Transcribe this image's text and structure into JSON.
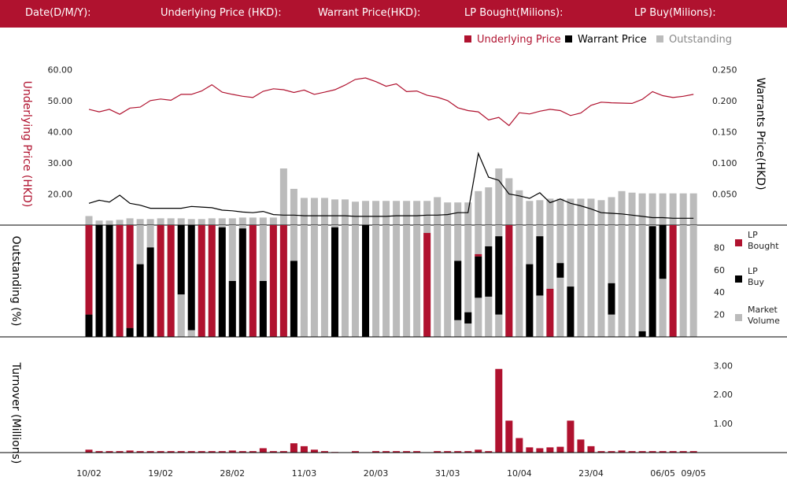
{
  "header": {
    "date_label": "Date(D/M/Y):",
    "underlying_label": "Underlying Price (HKD):",
    "warrant_label": "Warrant  Price(HKD):",
    "lp_bought_label": "LP Bought(Milions):",
    "lp_buy_label": "LP Buy(Milions):"
  },
  "colors": {
    "brand": "#b0122f",
    "black": "#000000",
    "gray": "#bbbbbb"
  },
  "chart_data": [
    {
      "type": "line",
      "title": "",
      "legend": {
        "position": "top-right",
        "items": [
          {
            "label": "Underlying Price",
            "color": "#b0122f",
            "marker": "square"
          },
          {
            "label": "Warrant  Price",
            "color": "#000000",
            "marker": "square"
          },
          {
            "label": "Outstanding",
            "color": "#bbbbbb",
            "marker": "square"
          }
        ]
      },
      "ylabel_left": "Underlying Price (HKD)",
      "ylabel_right": "Warrants  Price(HKD)",
      "yticks_left": [
        "20.00",
        "30.00",
        "40.00",
        "50.00",
        "60.00"
      ],
      "yticks_right": [
        "0.050",
        "0.100",
        "0.150",
        "0.200",
        "0.250"
      ],
      "ylim_left": [
        10,
        62.6
      ],
      "ylim_right": [
        0,
        0.263
      ],
      "x_tick_labels": [
        "10/02",
        "19/02",
        "28/02",
        "11/03",
        "20/03",
        "31/03",
        "10/04",
        "23/04",
        "06/05",
        "09/05"
      ],
      "x_tick_index": [
        0,
        7,
        14,
        21,
        28,
        35,
        42,
        49,
        56,
        59
      ],
      "series": [
        {
          "name": "Underlying Price",
          "color": "#b0122f",
          "values": [
            47.2,
            46.4,
            47.2,
            45.6,
            47.6,
            47.9,
            50,
            50.5,
            50.1,
            52,
            52,
            53.1,
            55.1,
            52.7,
            52,
            51.4,
            51,
            53,
            53.8,
            53.5,
            52.6,
            53.4,
            52,
            52.7,
            53.5,
            55,
            56.8,
            57.3,
            56.1,
            54.6,
            55.4,
            52.9,
            53.1,
            51.7,
            51.1,
            50,
            47.7,
            46.8,
            46.4,
            43.8,
            44.6,
            42,
            46.1,
            45.7,
            46.6,
            47.2,
            46.8,
            45.2,
            46,
            48.5,
            49.5,
            49.3,
            49.2,
            49.1,
            50.4,
            52.9,
            51.6,
            51,
            51.4,
            52
          ]
        },
        {
          "name": "Warrant  Price",
          "color": "#000000",
          "values": [
            0.035,
            0.04,
            0.037,
            0.048,
            0.035,
            0.032,
            0.027,
            0.027,
            0.027,
            0.027,
            0.03,
            0.029,
            0.028,
            0.024,
            0.023,
            0.021,
            0.02,
            0.022,
            0.017,
            0.016,
            0.016,
            0.015,
            0.015,
            0.015,
            0.015,
            0.015,
            0.014,
            0.014,
            0.014,
            0.014,
            0.015,
            0.015,
            0.015,
            0.016,
            0.016,
            0.017,
            0.02,
            0.02,
            0.115,
            0.077,
            0.072,
            0.05,
            0.047,
            0.043,
            0.052,
            0.036,
            0.042,
            0.035,
            0.031,
            0.026,
            0.02,
            0.019,
            0.018,
            0.016,
            0.014,
            0.012,
            0.012,
            0.011,
            0.011,
            0.011
          ]
        },
        {
          "name": "Outstanding",
          "color": "#bbbbbb",
          "unit": "%",
          "values": [
            12,
            6,
            6,
            7,
            9,
            8,
            8,
            9,
            9,
            9,
            8,
            8,
            9,
            9,
            9,
            10,
            10,
            10,
            10,
            75,
            48,
            36,
            36,
            36,
            34,
            34,
            31,
            32,
            32,
            32,
            32,
            32,
            32,
            32,
            37,
            30,
            30,
            30,
            45,
            50,
            75,
            62,
            46,
            32,
            33,
            35,
            35,
            35,
            35,
            35,
            33,
            37,
            45,
            43,
            42,
            42,
            42,
            42,
            42,
            42
          ]
        }
      ]
    },
    {
      "type": "bar",
      "stacked": true,
      "ylabel": "Outstanding (%)",
      "yticks": [
        "20",
        "40",
        "60",
        "80"
      ],
      "ylim": [
        0,
        100
      ],
      "legend": {
        "position": "right",
        "items": [
          {
            "label": "LP Bought",
            "color": "#b0122f"
          },
          {
            "label": "LP Buy",
            "color": "#000000"
          },
          {
            "label": "Market Volume",
            "color": "#bbbbbb"
          }
        ]
      },
      "series": [
        {
          "name": "LP Bought",
          "color": "#b0122f",
          "values": [
            80,
            0,
            0,
            100,
            92,
            0,
            0,
            100,
            100,
            0,
            0,
            100,
            100,
            0,
            0,
            0,
            100,
            0,
            100,
            100,
            0,
            0,
            0,
            0,
            0,
            0,
            0,
            0,
            0,
            0,
            0,
            0,
            0,
            93,
            0,
            0,
            0,
            0,
            2,
            0,
            0,
            100,
            0,
            0,
            0,
            43,
            0,
            0,
            0,
            0,
            0,
            0,
            0,
            0,
            0,
            0,
            0,
            100,
            0,
            0
          ]
        },
        {
          "name": "LP Buy",
          "color": "#000000",
          "values": [
            20,
            100,
            100,
            0,
            8,
            65,
            80,
            0,
            0,
            62,
            94,
            0,
            0,
            98,
            50,
            97,
            0,
            50,
            0,
            0,
            68,
            0,
            0,
            0,
            98,
            0,
            0,
            100,
            0,
            0,
            0,
            0,
            0,
            0,
            0,
            0,
            53,
            10,
            37,
            45,
            70,
            0,
            0,
            65,
            53,
            0,
            13,
            45,
            0,
            0,
            0,
            28,
            0,
            0,
            5,
            99,
            48,
            0,
            0,
            0
          ]
        },
        {
          "name": "Market Volume",
          "color": "#bbbbbb",
          "values": [
            0,
            0,
            0,
            0,
            0,
            0,
            0,
            0,
            0,
            38,
            6,
            0,
            0,
            0,
            0,
            0,
            0,
            0,
            0,
            0,
            0,
            18,
            21,
            0,
            0,
            0,
            0,
            0,
            0,
            0,
            0,
            0,
            0,
            0,
            0,
            0,
            15,
            12,
            35,
            36,
            20,
            0,
            63,
            0,
            37,
            0,
            53,
            0,
            5,
            0,
            0,
            20,
            8,
            0,
            0,
            0,
            52,
            0,
            0,
            0
          ]
        }
      ]
    },
    {
      "type": "bar",
      "ylabel": "Turnover (Millions)",
      "yticks": [
        "1.00",
        "2.00",
        "3.00"
      ],
      "ylim": [
        0,
        3.3
      ],
      "series": [
        {
          "name": "Turnover",
          "color": "#b0122f",
          "values": [
            0.1,
            0.05,
            0.05,
            0.05,
            0.07,
            0.05,
            0.05,
            0.05,
            0.05,
            0.05,
            0.05,
            0.05,
            0.05,
            0.05,
            0.07,
            0.05,
            0.05,
            0.15,
            0.05,
            0.05,
            0.32,
            0.22,
            0.1,
            0.05,
            0.02,
            0,
            0.05,
            0,
            0.05,
            0.05,
            0.05,
            0.05,
            0.05,
            0,
            0.05,
            0.05,
            0.05,
            0.05,
            0.1,
            0.05,
            2.88,
            1.1,
            0.5,
            0.18,
            0.15,
            0.18,
            0.2,
            1.1,
            0.45,
            0.22,
            0.05,
            0.05,
            0.07,
            0.05,
            0.05,
            0.05,
            0.05,
            0.05,
            0.05,
            0.05
          ]
        }
      ]
    }
  ]
}
